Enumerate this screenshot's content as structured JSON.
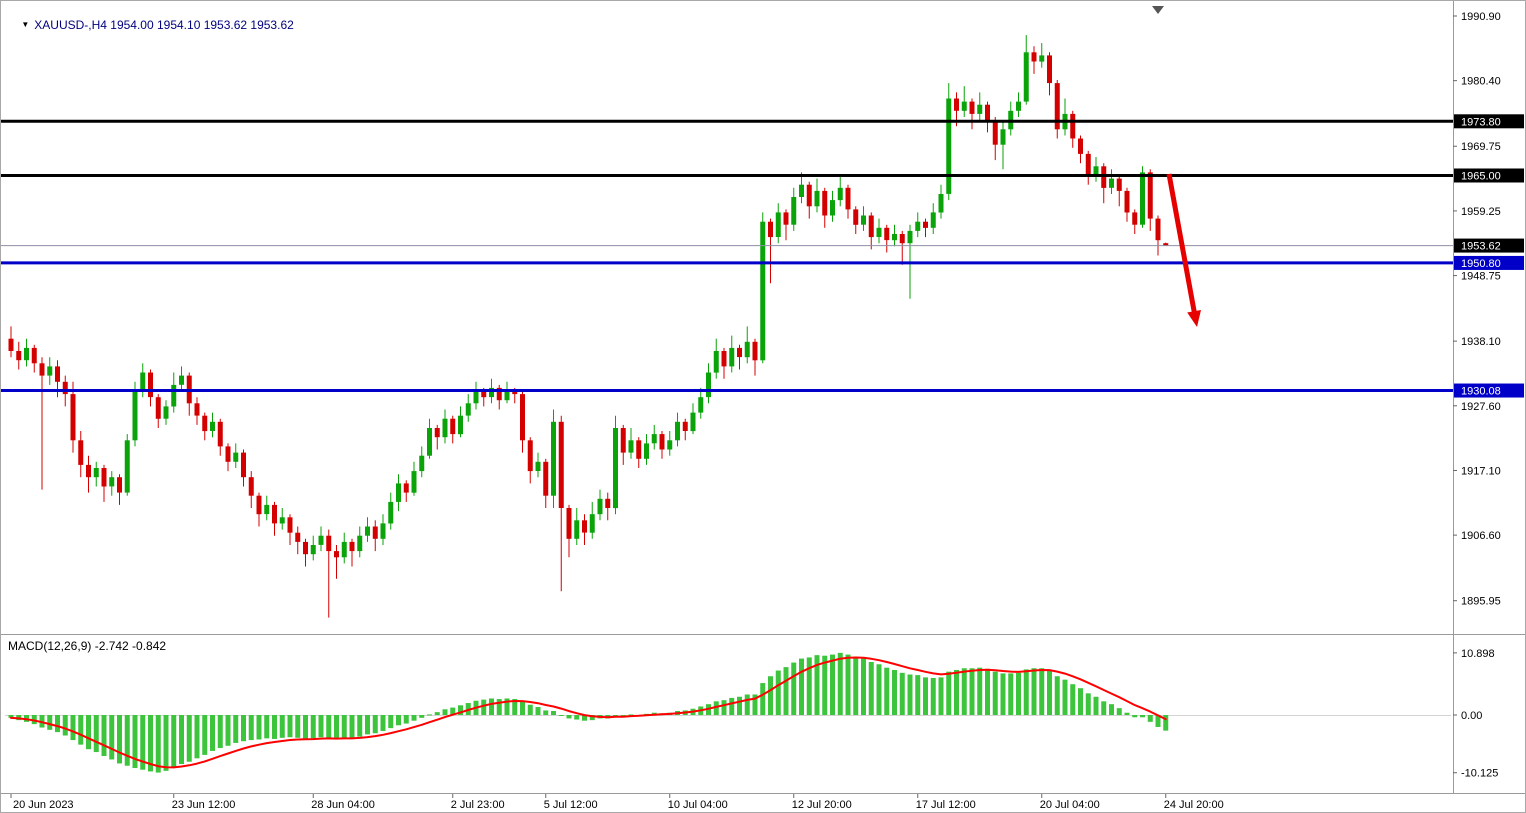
{
  "header": {
    "symbol_ohlc": "XAUUSD-,H4 1954.00 1954.10 1953.62 1953.62"
  },
  "icons": {
    "symbol_dropdown": "▼"
  },
  "macd_label": "MACD(12,26,9) -2.742 -0.842",
  "colors": {
    "background": "#ffffff",
    "bull_candle": "#0aa30a",
    "bear_candle": "#d40000",
    "macd_histogram": "#3cc43c",
    "macd_signal": "#ff0000",
    "level_black": "#000000",
    "level_blue": "#0000c8",
    "current_price_line": "#8e8ea8",
    "axis_text": "#000000",
    "separator": "#9a9a9a",
    "arrow_red": "#e60000"
  },
  "chart_data": {
    "type": "candlestick+macd",
    "symbol": "XAUUSD-",
    "timeframe": "H4",
    "title": "XAUUSD- H4 candlestick chart with MACD(12,26,9)",
    "last_bar": {
      "open": 1954.0,
      "high": 1954.1,
      "low": 1953.62,
      "close": 1953.62
    },
    "price_axis_ticks": [
      "1990.90",
      "1980.40",
      "1969.75",
      "1959.25",
      "1948.75",
      "1938.10",
      "1927.60",
      "1917.10",
      "1906.60",
      "1895.95"
    ],
    "price_axis_range": [
      1891.0,
      1992.2
    ],
    "grid": false,
    "levels": [
      {
        "name": "resistance-line-1973",
        "label": "1973.80",
        "price": 1973.8,
        "color": "#000000",
        "width": 3
      },
      {
        "name": "resistance-line-1965",
        "label": "1965.00",
        "price": 1965.0,
        "color": "#000000",
        "width": 3
      },
      {
        "name": "support-line-1950",
        "label": "1950.80",
        "price": 1950.8,
        "color": "#0000c8",
        "width": 3
      },
      {
        "name": "support-line-1930",
        "label": "1930.08",
        "price": 1930.08,
        "color": "#0000c8",
        "width": 3
      }
    ],
    "current_price": {
      "label": "1953.62",
      "value": 1953.62,
      "badge_color": "#000000"
    },
    "time_axis": [
      {
        "label": "20 Jun 2023",
        "index": 0
      },
      {
        "label": "23 Jun 12:00",
        "index": 21
      },
      {
        "label": "28 Jun 04:00",
        "index": 39
      },
      {
        "label": "2 Jul 23:00",
        "index": 57
      },
      {
        "label": "5 Jul 12:00",
        "index": 69
      },
      {
        "label": "10 Jul 04:00",
        "index": 85
      },
      {
        "label": "12 Jul 20:00",
        "index": 101
      },
      {
        "label": "17 Jul 12:00",
        "index": 117
      },
      {
        "label": "20 Jul 04:00",
        "index": 133
      },
      {
        "label": "24 Jul 20:00",
        "index": 149
      }
    ],
    "candles_ohlc": [
      [
        1938.5,
        1940.5,
        1935.5,
        1936.5
      ],
      [
        1936.5,
        1938.0,
        1933.5,
        1935.0
      ],
      [
        1935.0,
        1938.5,
        1934.0,
        1937.0
      ],
      [
        1937.0,
        1937.5,
        1933.0,
        1934.5
      ],
      [
        1934.5,
        1935.5,
        1914.0,
        1932.5
      ],
      [
        1932.5,
        1935.5,
        1931.0,
        1934.0
      ],
      [
        1934.0,
        1935.0,
        1929.0,
        1931.5
      ],
      [
        1931.5,
        1932.5,
        1927.5,
        1929.5
      ],
      [
        1929.5,
        1931.5,
        1920.0,
        1922.0
      ],
      [
        1922.0,
        1923.5,
        1916.0,
        1918.0
      ],
      [
        1918.0,
        1919.5,
        1913.5,
        1916.0
      ],
      [
        1916.0,
        1918.5,
        1914.5,
        1917.5
      ],
      [
        1917.5,
        1918.0,
        1912.0,
        1914.5
      ],
      [
        1914.5,
        1917.0,
        1913.0,
        1916.0
      ],
      [
        1916.0,
        1916.5,
        1911.5,
        1913.5
      ],
      [
        1913.5,
        1923.0,
        1913.0,
        1922.0
      ],
      [
        1922.0,
        1931.5,
        1921.0,
        1930.0
      ],
      [
        1930.0,
        1934.5,
        1929.0,
        1933.0
      ],
      [
        1933.0,
        1933.5,
        1927.5,
        1929.0
      ],
      [
        1929.0,
        1929.5,
        1924.0,
        1925.5
      ],
      [
        1925.5,
        1928.5,
        1924.5,
        1927.5
      ],
      [
        1927.5,
        1933.0,
        1926.5,
        1931.0
      ],
      [
        1931.0,
        1934.0,
        1930.0,
        1932.5
      ],
      [
        1932.5,
        1933.0,
        1926.0,
        1928.0
      ],
      [
        1928.0,
        1929.0,
        1924.5,
        1926.0
      ],
      [
        1926.0,
        1926.5,
        1922.0,
        1923.5
      ],
      [
        1923.5,
        1926.5,
        1922.5,
        1925.0
      ],
      [
        1925.0,
        1925.5,
        1919.5,
        1921.0
      ],
      [
        1921.0,
        1921.5,
        1917.0,
        1918.5
      ],
      [
        1918.5,
        1921.5,
        1917.5,
        1920.0
      ],
      [
        1920.0,
        1920.5,
        1914.5,
        1916.0
      ],
      [
        1916.0,
        1917.0,
        1911.0,
        1913.0
      ],
      [
        1913.0,
        1913.5,
        1908.0,
        1910.0
      ],
      [
        1910.0,
        1913.0,
        1909.0,
        1911.5
      ],
      [
        1911.5,
        1912.0,
        1906.5,
        1908.5
      ],
      [
        1908.5,
        1911.0,
        1907.5,
        1909.5
      ],
      [
        1909.5,
        1910.0,
        1905.0,
        1907.0
      ],
      [
        1907.0,
        1908.0,
        1903.5,
        1905.5
      ],
      [
        1905.5,
        1906.0,
        1901.5,
        1903.5
      ],
      [
        1903.5,
        1906.5,
        1902.5,
        1905.0
      ],
      [
        1905.0,
        1908.0,
        1904.0,
        1906.5
      ],
      [
        1906.5,
        1907.5,
        1893.2,
        1904.0
      ],
      [
        1904.0,
        1905.0,
        1899.5,
        1903.0
      ],
      [
        1903.0,
        1907.0,
        1902.0,
        1905.5
      ],
      [
        1905.5,
        1906.0,
        1901.5,
        1904.0
      ],
      [
        1904.0,
        1908.0,
        1903.0,
        1906.5
      ],
      [
        1906.5,
        1909.5,
        1905.5,
        1908.0
      ],
      [
        1908.0,
        1909.0,
        1904.0,
        1906.0
      ],
      [
        1906.0,
        1910.0,
        1905.0,
        1908.5
      ],
      [
        1908.5,
        1913.5,
        1907.5,
        1912.0
      ],
      [
        1912.0,
        1916.5,
        1910.5,
        1915.0
      ],
      [
        1915.0,
        1915.5,
        1912.0,
        1913.5
      ],
      [
        1913.5,
        1918.5,
        1913.0,
        1917.0
      ],
      [
        1917.0,
        1921.0,
        1916.0,
        1919.5
      ],
      [
        1919.5,
        1925.5,
        1919.0,
        1924.0
      ],
      [
        1924.0,
        1924.5,
        1920.5,
        1922.5
      ],
      [
        1922.5,
        1927.0,
        1921.5,
        1925.5
      ],
      [
        1925.5,
        1926.0,
        1921.5,
        1923.0
      ],
      [
        1923.0,
        1927.5,
        1922.5,
        1926.0
      ],
      [
        1926.0,
        1929.5,
        1925.0,
        1928.0
      ],
      [
        1928.0,
        1931.5,
        1927.0,
        1930.0
      ],
      [
        1930.0,
        1930.5,
        1927.5,
        1929.0
      ],
      [
        1929.0,
        1932.0,
        1928.0,
        1930.5
      ],
      [
        1930.5,
        1931.0,
        1927.0,
        1928.5
      ],
      [
        1928.5,
        1931.5,
        1928.0,
        1930.0
      ],
      [
        1930.0,
        1930.5,
        1928.0,
        1929.5
      ],
      [
        1929.5,
        1930.0,
        1920.0,
        1922.0
      ],
      [
        1922.0,
        1922.5,
        1915.0,
        1917.0
      ],
      [
        1917.0,
        1920.0,
        1916.0,
        1918.5
      ],
      [
        1918.5,
        1919.0,
        1911.0,
        1913.0
      ],
      [
        1913.0,
        1927.0,
        1911.0,
        1925.0
      ],
      [
        1925.0,
        1926.0,
        1897.5,
        1911.0
      ],
      [
        1911.0,
        1911.5,
        1903.0,
        1906.0
      ],
      [
        1906.0,
        1911.0,
        1905.0,
        1909.0
      ],
      [
        1909.0,
        1910.0,
        1905.0,
        1907.0
      ],
      [
        1907.0,
        1912.0,
        1906.0,
        1910.0
      ],
      [
        1910.0,
        1914.0,
        1909.0,
        1912.5
      ],
      [
        1912.5,
        1913.5,
        1909.0,
        1911.0
      ],
      [
        1911.0,
        1926.0,
        1910.0,
        1924.0
      ],
      [
        1924.0,
        1924.5,
        1918.0,
        1920.0
      ],
      [
        1920.0,
        1924.0,
        1919.0,
        1922.0
      ],
      [
        1922.0,
        1922.5,
        1917.5,
        1919.0
      ],
      [
        1919.0,
        1923.0,
        1918.0,
        1921.5
      ],
      [
        1921.5,
        1924.5,
        1920.5,
        1923.0
      ],
      [
        1923.0,
        1923.5,
        1919.0,
        1920.5
      ],
      [
        1920.5,
        1923.5,
        1919.5,
        1922.0
      ],
      [
        1922.0,
        1926.5,
        1921.0,
        1925.0
      ],
      [
        1925.0,
        1925.5,
        1922.0,
        1923.5
      ],
      [
        1923.5,
        1928.0,
        1923.0,
        1926.5
      ],
      [
        1926.5,
        1930.5,
        1925.5,
        1929.0
      ],
      [
        1929.0,
        1934.5,
        1928.0,
        1933.0
      ],
      [
        1933.0,
        1938.5,
        1932.0,
        1936.5
      ],
      [
        1936.5,
        1937.0,
        1932.0,
        1934.0
      ],
      [
        1934.0,
        1939.0,
        1933.0,
        1937.0
      ],
      [
        1937.0,
        1937.5,
        1933.5,
        1935.5
      ],
      [
        1935.5,
        1940.5,
        1934.5,
        1938.0
      ],
      [
        1938.0,
        1938.5,
        1932.5,
        1935.0
      ],
      [
        1935.0,
        1959.0,
        1934.5,
        1957.5
      ],
      [
        1957.5,
        1958.0,
        1947.5,
        1955.0
      ],
      [
        1955.0,
        1960.5,
        1954.0,
        1959.0
      ],
      [
        1959.0,
        1959.5,
        1954.5,
        1957.0
      ],
      [
        1957.0,
        1963.0,
        1956.0,
        1961.5
      ],
      [
        1961.5,
        1965.5,
        1960.5,
        1963.5
      ],
      [
        1963.5,
        1964.0,
        1958.0,
        1960.0
      ],
      [
        1960.0,
        1964.5,
        1959.0,
        1962.5
      ],
      [
        1962.5,
        1963.0,
        1956.5,
        1958.5
      ],
      [
        1958.5,
        1962.5,
        1957.5,
        1961.0
      ],
      [
        1961.0,
        1965.0,
        1960.0,
        1963.0
      ],
      [
        1963.0,
        1963.5,
        1958.0,
        1959.5
      ],
      [
        1959.5,
        1960.0,
        1955.5,
        1957.0
      ],
      [
        1957.0,
        1960.0,
        1956.0,
        1958.5
      ],
      [
        1958.5,
        1959.0,
        1953.0,
        1955.0
      ],
      [
        1955.0,
        1958.0,
        1954.0,
        1956.5
      ],
      [
        1956.5,
        1957.0,
        1952.5,
        1954.5
      ],
      [
        1954.5,
        1957.0,
        1953.5,
        1955.5
      ],
      [
        1955.5,
        1956.0,
        1950.5,
        1954.0
      ],
      [
        1954.0,
        1957.0,
        1945.0,
        1956.0
      ],
      [
        1956.0,
        1959.0,
        1955.0,
        1957.5
      ],
      [
        1957.5,
        1958.0,
        1955.0,
        1956.5
      ],
      [
        1956.5,
        1960.5,
        1955.5,
        1959.0
      ],
      [
        1959.0,
        1963.5,
        1958.0,
        1962.0
      ],
      [
        1962.0,
        1980.0,
        1961.0,
        1977.5
      ],
      [
        1977.5,
        1978.5,
        1973.0,
        1975.5
      ],
      [
        1975.5,
        1979.5,
        1974.5,
        1977.0
      ],
      [
        1977.0,
        1977.5,
        1972.5,
        1975.0
      ],
      [
        1975.0,
        1978.5,
        1974.0,
        1976.5
      ],
      [
        1976.5,
        1977.0,
        1972.0,
        1974.0
      ],
      [
        1974.0,
        1974.5,
        1967.5,
        1970.0
      ],
      [
        1970.0,
        1974.0,
        1966.0,
        1972.5
      ],
      [
        1972.5,
        1977.0,
        1971.5,
        1975.5
      ],
      [
        1975.5,
        1978.5,
        1974.5,
        1977.0
      ],
      [
        1977.0,
        1987.8,
        1976.5,
        1985.0
      ],
      [
        1985.0,
        1986.0,
        1981.5,
        1983.5
      ],
      [
        1983.5,
        1986.5,
        1982.5,
        1984.5
      ],
      [
        1984.5,
        1985.0,
        1978.0,
        1980.0
      ],
      [
        1980.0,
        1980.5,
        1971.0,
        1972.5
      ],
      [
        1972.5,
        1977.5,
        1971.5,
        1975.0
      ],
      [
        1975.0,
        1975.5,
        1969.5,
        1971.0
      ],
      [
        1971.0,
        1971.5,
        1967.0,
        1968.5
      ],
      [
        1968.5,
        1969.0,
        1963.5,
        1965.0
      ],
      [
        1965.0,
        1968.0,
        1964.0,
        1966.5
      ],
      [
        1966.5,
        1967.0,
        1960.5,
        1963.0
      ],
      [
        1963.0,
        1966.0,
        1962.0,
        1964.5
      ],
      [
        1964.5,
        1965.0,
        1960.0,
        1962.5
      ],
      [
        1962.5,
        1963.0,
        1957.5,
        1959.0
      ],
      [
        1959.0,
        1959.5,
        1955.5,
        1957.0
      ],
      [
        1957.0,
        1966.5,
        1956.5,
        1965.5
      ],
      [
        1965.5,
        1966.0,
        1956.0,
        1958.0
      ],
      [
        1958.0,
        1958.5,
        1952.0,
        1954.5
      ],
      [
        1954.0,
        1954.1,
        1953.62,
        1953.62
      ]
    ],
    "macd": {
      "label": "MACD(12,26,9) -2.742 -0.842",
      "main_value": -2.742,
      "signal_value": -0.842,
      "axis_ticks": [
        "10.898",
        "0.00",
        "-10.125"
      ],
      "axis_range": [
        -12.9,
        12.9
      ],
      "histogram": [
        -0.5,
        -0.9,
        -1.2,
        -1.6,
        -2.2,
        -2.6,
        -3.0,
        -3.6,
        -4.4,
        -5.2,
        -6.0,
        -6.5,
        -7.2,
        -7.8,
        -8.5,
        -8.9,
        -9.3,
        -9.6,
        -9.9,
        -10.1,
        -9.8,
        -9.2,
        -8.6,
        -8.2,
        -7.6,
        -7.0,
        -6.3,
        -5.8,
        -5.4,
        -4.9,
        -4.6,
        -4.4,
        -4.3,
        -4.1,
        -4.2,
        -4.0,
        -3.9,
        -4.0,
        -4.2,
        -4.1,
        -3.9,
        -4.0,
        -4.2,
        -4.0,
        -4.1,
        -3.8,
        -3.4,
        -3.2,
        -2.8,
        -2.3,
        -1.8,
        -1.5,
        -1.0,
        -0.5,
        0.1,
        0.5,
        1.0,
        1.3,
        1.7,
        2.1,
        2.5,
        2.7,
        2.9,
        2.8,
        2.9,
        2.8,
        2.4,
        1.8,
        1.4,
        0.8,
        0.7,
        0.0,
        -0.6,
        -0.8,
        -1.0,
        -0.9,
        -0.6,
        -0.6,
        -0.1,
        -0.2,
        0.1,
        0.0,
        0.2,
        0.4,
        0.3,
        0.4,
        0.7,
        0.8,
        1.1,
        1.5,
        1.9,
        2.4,
        2.6,
        3.0,
        3.2,
        3.6,
        3.6,
        5.6,
        6.8,
        7.8,
        8.4,
        9.2,
        9.9,
        10.1,
        10.5,
        10.4,
        10.6,
        10.9,
        10.6,
        10.2,
        9.9,
        9.3,
        8.9,
        8.3,
        7.9,
        7.4,
        7.1,
        7.0,
        6.6,
        6.5,
        6.6,
        7.6,
        7.9,
        8.2,
        8.2,
        8.3,
        8.1,
        7.6,
        7.3,
        7.3,
        7.4,
        8.0,
        8.2,
        8.2,
        7.8,
        6.8,
        6.2,
        5.4,
        4.7,
        3.8,
        3.2,
        2.4,
        1.9,
        1.2,
        0.4,
        -0.4,
        -0.4,
        -1.2,
        -2.1,
        -2.742
      ]
    },
    "annotation_arrow": {
      "from": [
        1168,
        173
      ],
      "to": [
        1196,
        326
      ],
      "color": "#e60000"
    }
  }
}
